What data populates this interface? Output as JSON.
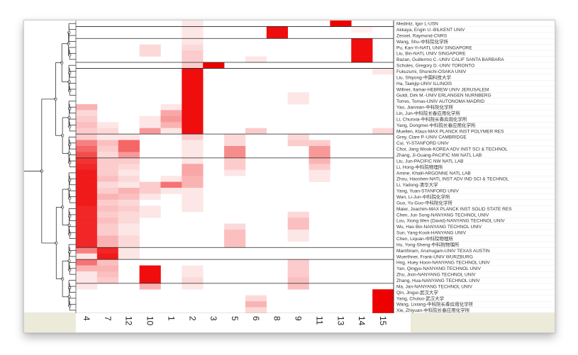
{
  "chart_data": {
    "type": "heatmap",
    "columns": [
      "4",
      "7",
      "12",
      "10",
      "1",
      "2",
      "3",
      "5",
      "6",
      "8",
      "9",
      "11",
      "13",
      "14",
      "15"
    ],
    "rows": [
      "Medintz, Igor L-USN",
      "Akkaya, Engin U.-BILKENT UNIV",
      "Zessel, Raymond-CNRS",
      "Wang, Shu-中科院化学所",
      "Pu, Kan-Yi-NATL UNIV SINGAPORE",
      "Liu, Bin-NATL UNIV SINGAPORE",
      "Bazan, Guillermo C.-UNIV CALIF SANTA BARBARA",
      "Scholes, Gregory D.-UNIV TORONTO",
      "Fukuzumi, Shunichi-OSAKA UNIV",
      "Liu, Shiyong-中国科技大学",
      "Ha, Taekjip-UNIV ILLINOIS",
      "Willner, Itamar-HEBREW UNIV JERUSALEM",
      "Guldi, Dirk M.-UNIV ERLANGEN NURNBERG",
      "Torres, Tomas-UNIV AUTONOMA MADRID",
      "Yao, Jiannian-中科院化学所",
      "Lin, Jun-中科院长春应用化学所",
      "Li, Chunxia-中科院长春应用化学所",
      "Yang, Dongmei-中科院长春应用化学所",
      "Muellen, Klaus-MAX PLANCK INST POLYMER RES",
      "Grey, Clare P.-UNIV CAMBRIDGE",
      "Cui, Yi-STANFORD UNIV",
      "Choi, Jang Wook-KOREA ADV INST SCI & TECHNOL",
      "Zhang, Ji-Guang-PACIFIC NW NATL LAB",
      "Liu, Jun-PACIFIC NW NATL LAB",
      "Li, Hong-中科院物理所",
      "Amine, Khalil-ARGONNE NATL LAB",
      "Zhou, Haoshen-NATL INST ADV IND SCI & TECHNOL",
      "Li, Yadong-清华大学",
      "Yang, Yuan-STANFORD UNIV",
      "Wan, Li-Jun-中科院化学所",
      "Guo, Yu-Guo-中科院化学所",
      "Maier, Joachim-MAX PLANCK INST SOLID STATE RES",
      "Chen, Jun Song-NANYANG TECHNOL UNIV",
      "Lou, Xiong Wen (David)-NANYANG TECHNOL UNIV",
      "Wu, Hao Bin-NANYANG TECHNOL UNIV",
      "Sun, Yang-Kook-HANYANG UNIV",
      "Chen, Liquan-中科院物理所",
      "Hu, Yong-Sheng-中科院物理所",
      "Manthiram, Arumugam-UNIV TEXAS AUSTIN",
      "Wuerthner, Frank-UNIV WURZBURG",
      "Hng, Huey Hoon-NANYANG TECHNOL UNIV",
      "Yan, Qingyu-NANYANG TECHNOL UNIV",
      "Zhu, Jixin-NANYANG TECHNOL UNIV",
      "Zhang, Hua-NANYANG TECHNOL UNIV",
      "Ma, Jan-NANYANG TECHNOL UNIV",
      "Qin, Jingui-武汉大学",
      "Yang, Chuluo-武汉大学",
      "Wang, Lixiang-中科院长春应用化学所",
      "Xie, Zhiyuan-中科院长春应用化学所"
    ],
    "values": [
      [
        0,
        0,
        0,
        0,
        0,
        0.1,
        0,
        0,
        0,
        0,
        0,
        0,
        1,
        0,
        0
      ],
      [
        0,
        0,
        0,
        0,
        0,
        0.1,
        0,
        0,
        0,
        0.95,
        0,
        0,
        0,
        0.05,
        0
      ],
      [
        0,
        0,
        0,
        0,
        0,
        0.1,
        0,
        0,
        0,
        0.95,
        0,
        0,
        0,
        0,
        0
      ],
      [
        0,
        0,
        0,
        0,
        0,
        0.1,
        0,
        0,
        0,
        0,
        0,
        0,
        0,
        0.95,
        0
      ],
      [
        0,
        0,
        0,
        0.15,
        0,
        0.15,
        0,
        0,
        0,
        0,
        0,
        0,
        0,
        0.95,
        0
      ],
      [
        0,
        0,
        0,
        0.15,
        0,
        0.2,
        0,
        0,
        0,
        0,
        0,
        0,
        0,
        0.95,
        0
      ],
      [
        0,
        0,
        0,
        0,
        0,
        0.2,
        0,
        0,
        0.1,
        0,
        0,
        0,
        0,
        0.95,
        0
      ],
      [
        0,
        0,
        0,
        0,
        0,
        0.2,
        1,
        0,
        0,
        0,
        0,
        0,
        0,
        0,
        0
      ],
      [
        0,
        0,
        0,
        0,
        0,
        0.95,
        0,
        0,
        0,
        0,
        0,
        0,
        0,
        0,
        0.1
      ],
      [
        0,
        0,
        0,
        0,
        0,
        0.95,
        0,
        0,
        0,
        0,
        0,
        0,
        0,
        0,
        0
      ],
      [
        0,
        0,
        0,
        0,
        0,
        0.95,
        0,
        0,
        0,
        0,
        0,
        0,
        0,
        0,
        0
      ],
      [
        0,
        0,
        0,
        0,
        0,
        0.95,
        0,
        0,
        0,
        0,
        0,
        0,
        0,
        0,
        0
      ],
      [
        0,
        0,
        0,
        0,
        0,
        0.95,
        0,
        0,
        0,
        0,
        0.1,
        0,
        0,
        0,
        0
      ],
      [
        0,
        0,
        0,
        0,
        0,
        0.95,
        0,
        0,
        0,
        0,
        0.1,
        0,
        0,
        0,
        0
      ],
      [
        0.3,
        0,
        0,
        0,
        0.1,
        0.95,
        0,
        0,
        0,
        0,
        0,
        0,
        0,
        0,
        0
      ],
      [
        0.15,
        0,
        0,
        0,
        0.35,
        0.95,
        0,
        0,
        0,
        0,
        0,
        0,
        0,
        0,
        0
      ],
      [
        0.2,
        0,
        0,
        0.1,
        0.4,
        0.95,
        0,
        0,
        0,
        0,
        0,
        0,
        0,
        0,
        0
      ],
      [
        0.25,
        0.1,
        0,
        0.1,
        0.3,
        0.95,
        0,
        0,
        0,
        0,
        0,
        0,
        0,
        0,
        0
      ],
      [
        0.2,
        0.15,
        0,
        0.4,
        0.1,
        0.95,
        0,
        0,
        0.2,
        0,
        0,
        0,
        0,
        0,
        0.15
      ],
      [
        0.2,
        0.1,
        0.1,
        0,
        0,
        0.2,
        0,
        0.15,
        0,
        0,
        0.15,
        0,
        0,
        0,
        0
      ],
      [
        0.5,
        0.25,
        0.6,
        0,
        0,
        0.1,
        0,
        0.15,
        0,
        0,
        0.2,
        0.2,
        0,
        0,
        0
      ],
      [
        0.6,
        0.2,
        0.6,
        0,
        0,
        0.1,
        0,
        0.45,
        0,
        0,
        0,
        0.4,
        0,
        0,
        0
      ],
      [
        0.7,
        0.15,
        0.4,
        0,
        0,
        0.1,
        0,
        0.45,
        0,
        0,
        0,
        0.4,
        0,
        0,
        0
      ],
      [
        0.8,
        0.2,
        0.2,
        0,
        0,
        0.1,
        0,
        0.2,
        0,
        0,
        0,
        0.3,
        0,
        0,
        0
      ],
      [
        0.85,
        0.2,
        0.15,
        0,
        0,
        0.35,
        0,
        0.2,
        0,
        0,
        0,
        0.2,
        0,
        0,
        0
      ],
      [
        0.9,
        0.2,
        0.1,
        0,
        0,
        0.35,
        0,
        0.1,
        0,
        0,
        0,
        0.1,
        0,
        0,
        0
      ],
      [
        0.9,
        0.25,
        0.15,
        0,
        0.1,
        0.3,
        0,
        0,
        0,
        0,
        0,
        0.1,
        0,
        0,
        0
      ],
      [
        0.9,
        0.15,
        0.1,
        0.2,
        0.55,
        0.3,
        0,
        0,
        0,
        0,
        0,
        0,
        0,
        0,
        0
      ],
      [
        0.9,
        0.2,
        0.3,
        0.2,
        0.1,
        0.1,
        0,
        0,
        0,
        0,
        0,
        0,
        0,
        0,
        0
      ],
      [
        0.9,
        0.3,
        0.25,
        0.1,
        0,
        0.1,
        0,
        0,
        0,
        0,
        0,
        0,
        0,
        0,
        0
      ],
      [
        0.9,
        0.2,
        0.15,
        0,
        0,
        0.1,
        0,
        0,
        0,
        0,
        0,
        0,
        0,
        0,
        0
      ],
      [
        0.85,
        0.25,
        0.2,
        0.1,
        0,
        0.1,
        0,
        0,
        0,
        0,
        0,
        0,
        0,
        0,
        0
      ],
      [
        0.85,
        0.2,
        0.15,
        0.1,
        0,
        0,
        0,
        0,
        0,
        0,
        0.15,
        0,
        0,
        0,
        0
      ],
      [
        0.85,
        0.25,
        0.15,
        0,
        0,
        0,
        0,
        0,
        0,
        0,
        0.25,
        0,
        0,
        0,
        0
      ],
      [
        0.85,
        0.2,
        0.1,
        0,
        0,
        0,
        0,
        0.15,
        0,
        0,
        0.25,
        0,
        0,
        0,
        0
      ],
      [
        0.85,
        0.2,
        0.1,
        0,
        0,
        0,
        0,
        0.25,
        0,
        0,
        0.1,
        0,
        0,
        0,
        0
      ],
      [
        0.85,
        0.3,
        0.15,
        0,
        0,
        0,
        0,
        0.25,
        0,
        0,
        0.1,
        0,
        0,
        0,
        0
      ],
      [
        0.85,
        0.3,
        0.15,
        0,
        0,
        0,
        0,
        0.25,
        0,
        0,
        0,
        0,
        0,
        0,
        0
      ],
      [
        0.5,
        0.85,
        0.1,
        0,
        0,
        0,
        0,
        0,
        0,
        0,
        0,
        0,
        0,
        0,
        0
      ],
      [
        0.1,
        0.9,
        0.1,
        0,
        0,
        0,
        0,
        0,
        0,
        0,
        0,
        0,
        0,
        0,
        0
      ],
      [
        0.55,
        0.25,
        0,
        0,
        0,
        0,
        0,
        0,
        0,
        0,
        0.2,
        0,
        0,
        0,
        0
      ],
      [
        0.3,
        0.3,
        0,
        0.95,
        0,
        0.1,
        0,
        0,
        0,
        0,
        0.2,
        0,
        0,
        0,
        0
      ],
      [
        0.1,
        0.25,
        0,
        0.95,
        0,
        0.1,
        0,
        0,
        0,
        0,
        0.2,
        0,
        0,
        0,
        0
      ],
      [
        0.1,
        0.2,
        0,
        0.95,
        0,
        0.15,
        0,
        0,
        0,
        0,
        0.25,
        0,
        0,
        0,
        0
      ],
      [
        0.1,
        0,
        0,
        0.3,
        0,
        0.1,
        0,
        0,
        0,
        0,
        0.25,
        0,
        0,
        0,
        0
      ],
      [
        0,
        0,
        0,
        0,
        0,
        0,
        0,
        0,
        0,
        0,
        0,
        0,
        0,
        0,
        1
      ],
      [
        0,
        0,
        0,
        0,
        0,
        0,
        0,
        0,
        0.15,
        0,
        0,
        0,
        0,
        0,
        1
      ],
      [
        0,
        0,
        0,
        0,
        0,
        0,
        0,
        0,
        0.3,
        0,
        0,
        0,
        0,
        0,
        1
      ],
      [
        0,
        0,
        0,
        0,
        0,
        0,
        0,
        0,
        0.15,
        0,
        0,
        0,
        0,
        0,
        1
      ]
    ],
    "color_low": "#ffffff",
    "color_high": "#ee0000"
  }
}
